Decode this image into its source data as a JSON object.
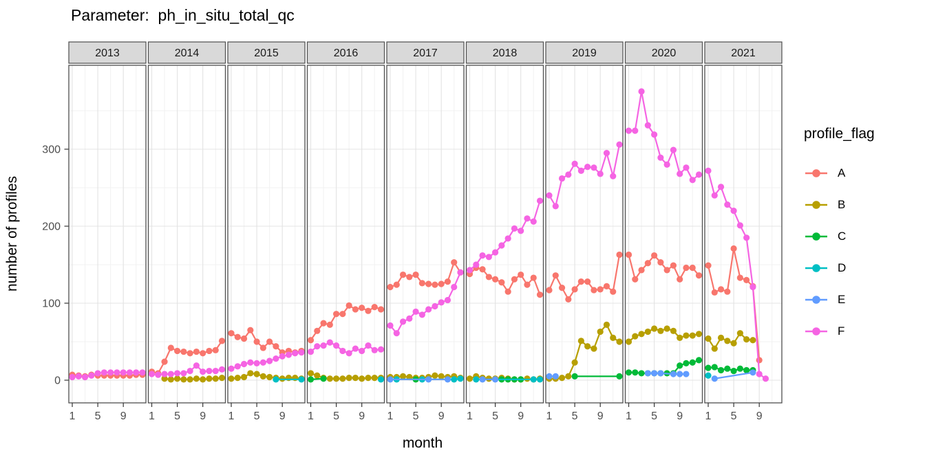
{
  "chart_data": {
    "type": "line",
    "title": "Parameter:  ph_in_situ_total_qc",
    "xlabel": "month",
    "ylabel": "number of profiles",
    "legend_title": "profile_flag",
    "x_ticks": [
      1,
      5,
      9
    ],
    "y_ticks": [
      0,
      100,
      200,
      300
    ],
    "ylim": [
      0,
      380
    ],
    "grid": "on",
    "legend_position": "right",
    "series_order": [
      "A",
      "B",
      "C",
      "D",
      "E",
      "F"
    ],
    "colors": {
      "A": "#F8766D",
      "B": "#B79F00",
      "C": "#00BA38",
      "D": "#00BFC4",
      "E": "#619CFF",
      "F": "#F564E3"
    },
    "strip_fill": "#D9D9D9",
    "panel_border": "#4D4D4D",
    "facets": [
      {
        "year": "2013",
        "series": {
          "A": {
            "months": [
              1,
              2,
              3,
              4,
              5,
              6,
              7,
              8,
              9,
              10,
              11,
              12
            ],
            "values": [
              7,
              6,
              5,
              7,
              6,
              6,
              6,
              6,
              6,
              6,
              7,
              7
            ]
          },
          "F": {
            "months": [
              1,
              2,
              3,
              4,
              5,
              6,
              7,
              8,
              9,
              10,
              11,
              12
            ],
            "values": [
              4,
              5,
              4,
              6,
              9,
              10,
              10,
              10,
              10,
              10,
              10,
              10
            ]
          }
        }
      },
      {
        "year": "2014",
        "series": {
          "A": {
            "months": [
              1,
              2,
              3,
              4,
              5,
              6,
              7,
              8,
              9,
              10,
              11,
              12
            ],
            "values": [
              11,
              9,
              24,
              42,
              38,
              37,
              35,
              37,
              35,
              38,
              39,
              51
            ]
          },
          "B": {
            "months": [
              3,
              4,
              5,
              6,
              7,
              8,
              9,
              10,
              11,
              12
            ],
            "values": [
              2,
              1,
              2,
              1,
              1,
              2,
              1,
              2,
              2,
              3
            ]
          },
          "F": {
            "months": [
              1,
              2,
              3,
              4,
              5,
              6,
              7,
              8,
              9,
              10,
              11,
              12
            ],
            "values": [
              8,
              7,
              8,
              8,
              9,
              9,
              12,
              19,
              11,
              12,
              12,
              14
            ]
          }
        }
      },
      {
        "year": "2015",
        "series": {
          "A": {
            "months": [
              1,
              2,
              3,
              4,
              5,
              6,
              7,
              8,
              9,
              10,
              11,
              12
            ],
            "values": [
              61,
              56,
              54,
              65,
              50,
              42,
              50,
              44,
              36,
              38,
              36,
              38
            ]
          },
          "B": {
            "months": [
              1,
              2,
              3,
              4,
              5,
              6,
              7,
              8,
              9,
              10,
              11,
              12
            ],
            "values": [
              2,
              3,
              4,
              9,
              8,
              5,
              4,
              3,
              2,
              3,
              3,
              2
            ]
          },
          "D": {
            "months": [
              8,
              12
            ],
            "values": [
              1,
              1
            ]
          },
          "F": {
            "months": [
              1,
              2,
              3,
              4,
              5,
              6,
              7,
              8,
              9,
              10,
              11,
              12
            ],
            "values": [
              15,
              18,
              21,
              23,
              22,
              23,
              25,
              28,
              31,
              33,
              35,
              36
            ]
          }
        }
      },
      {
        "year": "2016",
        "series": {
          "A": {
            "months": [
              1,
              2,
              3,
              4,
              5,
              6,
              7,
              8,
              9,
              10,
              11,
              12
            ],
            "values": [
              52,
              64,
              74,
              72,
              86,
              86,
              97,
              92,
              94,
              90,
              95,
              92
            ]
          },
          "B": {
            "months": [
              1,
              2,
              3,
              4,
              5,
              6,
              7,
              8,
              9,
              10,
              11,
              12
            ],
            "values": [
              9,
              6,
              3,
              2,
              2,
              2,
              3,
              3,
              2,
              3,
              3,
              3
            ]
          },
          "C": {
            "months": [
              1,
              3
            ],
            "values": [
              1,
              2
            ]
          },
          "D": {
            "months": [
              12
            ],
            "values": [
              1
            ]
          },
          "F": {
            "months": [
              1,
              2,
              3,
              4,
              5,
              6,
              7,
              8,
              9,
              10,
              11,
              12
            ],
            "values": [
              37,
              44,
              45,
              49,
              45,
              38,
              35,
              41,
              38,
              45,
              39,
              40
            ]
          }
        }
      },
      {
        "year": "2017",
        "series": {
          "A": {
            "months": [
              1,
              2,
              3,
              4,
              5,
              6,
              7,
              8,
              9,
              10,
              11,
              12
            ],
            "values": [
              121,
              124,
              137,
              134,
              137,
              126,
              125,
              124,
              125,
              128,
              153,
              140
            ]
          },
          "B": {
            "months": [
              1,
              2,
              3,
              4,
              5,
              6,
              7,
              8,
              9,
              10,
              11,
              12
            ],
            "values": [
              4,
              4,
              5,
              4,
              3,
              3,
              4,
              6,
              5,
              4,
              5,
              3
            ]
          },
          "C": {
            "months": [
              5
            ],
            "values": [
              1
            ]
          },
          "D": {
            "months": [
              2,
              6,
              11,
              12
            ],
            "values": [
              1,
              1,
              1,
              2
            ]
          },
          "E": {
            "months": [
              1,
              7,
              10
            ],
            "values": [
              1,
              1,
              1
            ]
          },
          "F": {
            "months": [
              1,
              2,
              3,
              4,
              5,
              6,
              7,
              8,
              9,
              10,
              11,
              12
            ],
            "values": [
              71,
              61,
              76,
              80,
              89,
              85,
              92,
              96,
              101,
              104,
              121,
              140
            ]
          }
        }
      },
      {
        "year": "2018",
        "series": {
          "A": {
            "months": [
              1,
              2,
              3,
              4,
              5,
              6,
              7,
              8,
              9,
              10,
              11,
              12
            ],
            "values": [
              138,
              146,
              144,
              134,
              131,
              127,
              115,
              131,
              137,
              124,
              133,
              111
            ]
          },
          "B": {
            "months": [
              1,
              2,
              3,
              4,
              5,
              6,
              7,
              8,
              9,
              10,
              11,
              12
            ],
            "values": [
              2,
              5,
              3,
              2,
              2,
              3,
              2,
              1,
              1,
              2,
              1,
              2
            ]
          },
          "C": {
            "months": [
              6,
              7,
              8,
              9
            ],
            "values": [
              1,
              1,
              1,
              1
            ]
          },
          "D": {
            "months": [
              2,
              11,
              12
            ],
            "values": [
              1,
              1,
              1
            ]
          },
          "E": {
            "months": [
              3,
              5
            ],
            "values": [
              1,
              1
            ]
          },
          "F": {
            "months": [
              1,
              2,
              3,
              4,
              5,
              6,
              7,
              8,
              9,
              10,
              11,
              12
            ],
            "values": [
              143,
              150,
              162,
              160,
              166,
              175,
              184,
              197,
              194,
              210,
              206,
              233
            ]
          }
        }
      },
      {
        "year": "2019",
        "series": {
          "A": {
            "months": [
              1,
              2,
              3,
              4,
              5,
              6,
              7,
              8,
              9,
              10,
              11,
              12
            ],
            "values": [
              117,
              136,
              120,
              105,
              118,
              128,
              128,
              117,
              118,
              122,
              115,
              163
            ]
          },
          "B": {
            "months": [
              1,
              2,
              3,
              4,
              5,
              6,
              7,
              8,
              9,
              10,
              11,
              12
            ],
            "values": [
              2,
              2,
              3,
              5,
              23,
              51,
              44,
              41,
              63,
              72,
              55,
              50
            ]
          },
          "C": {
            "months": [
              5,
              12
            ],
            "values": [
              5,
              5
            ]
          },
          "E": {
            "months": [
              1,
              2
            ],
            "values": [
              5,
              5
            ]
          },
          "F": {
            "months": [
              1,
              2,
              3,
              4,
              5,
              6,
              7,
              8,
              9,
              10,
              11,
              12
            ],
            "values": [
              240,
              226,
              262,
              267,
              281,
              272,
              277,
              276,
              268,
              295,
              265,
              306
            ]
          }
        }
      },
      {
        "year": "2020",
        "series": {
          "A": {
            "months": [
              1,
              2,
              3,
              4,
              5,
              6,
              7,
              8,
              9,
              10,
              11,
              12
            ],
            "values": [
              163,
              131,
              143,
              152,
              162,
              153,
              143,
              149,
              131,
              146,
              146,
              136
            ]
          },
          "B": {
            "months": [
              1,
              2,
              3,
              4,
              5,
              6,
              7,
              8,
              9,
              10,
              11,
              12
            ],
            "values": [
              50,
              57,
              60,
              63,
              67,
              64,
              67,
              64,
              55,
              58,
              58,
              60
            ]
          },
          "C": {
            "months": [
              1,
              2,
              3,
              4,
              5,
              6,
              7,
              8,
              9,
              10,
              11,
              12
            ],
            "values": [
              10,
              10,
              9,
              9,
              9,
              9,
              9,
              9,
              19,
              22,
              23,
              26
            ]
          },
          "E": {
            "months": [
              4,
              5,
              6,
              8,
              9,
              10
            ],
            "values": [
              9,
              9,
              9,
              8,
              8,
              8
            ]
          },
          "F": {
            "months": [
              1,
              2,
              3,
              4,
              5,
              6,
              7,
              8,
              9,
              10,
              11,
              12
            ],
            "values": [
              324,
              324,
              375,
              331,
              319,
              289,
              280,
              299,
              268,
              276,
              260,
              267
            ]
          }
        }
      },
      {
        "year": "2021",
        "series": {
          "A": {
            "months": [
              1,
              2,
              3,
              4,
              5,
              6,
              7,
              8,
              9
            ],
            "values": [
              149,
              114,
              118,
              115,
              171,
              133,
              130,
              122,
              26
            ]
          },
          "B": {
            "months": [
              1,
              2,
              3,
              4,
              5,
              6,
              7,
              8
            ],
            "values": [
              54,
              41,
              55,
              51,
              48,
              61,
              53,
              52
            ]
          },
          "C": {
            "months": [
              1,
              2,
              3,
              4,
              5,
              6,
              7,
              8
            ],
            "values": [
              16,
              17,
              13,
              15,
              12,
              15,
              13,
              13
            ]
          },
          "D": {
            "months": [
              1
            ],
            "values": [
              6
            ]
          },
          "E": {
            "months": [
              2,
              8
            ],
            "values": [
              2,
              10
            ]
          },
          "F": {
            "months": [
              1,
              2,
              3,
              4,
              5,
              6,
              7,
              8,
              9,
              10
            ],
            "values": [
              272,
              240,
              251,
              228,
              220,
              201,
              185,
              121,
              8,
              2
            ]
          }
        }
      }
    ]
  }
}
